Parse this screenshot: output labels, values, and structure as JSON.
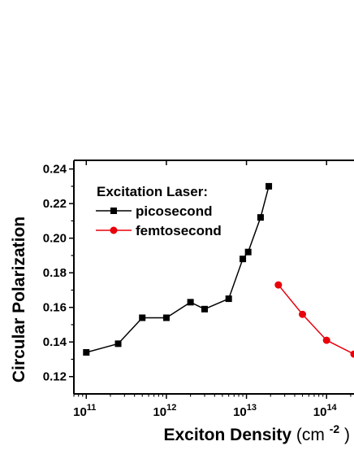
{
  "chart_data": {
    "type": "line",
    "xscale": "log",
    "xlabel": "Exciton Density (cm-2)",
    "xlabel_main": "Exciton Density ",
    "xlabel_unit_open": "(cm",
    "xlabel_unit_exp": "-2",
    "xlabel_unit_close": ")",
    "ylabel": "Circular Polarization",
    "xlim": [
      70000000000.0,
      220000000000000.0
    ],
    "ylim": [
      0.11,
      0.245
    ],
    "x_ticks": [
      {
        "base": "10",
        "exp": "11",
        "value": 100000000000.0
      },
      {
        "base": "10",
        "exp": "12",
        "value": 1000000000000.0
      },
      {
        "base": "10",
        "exp": "13",
        "value": 10000000000000.0
      },
      {
        "base": "10",
        "exp": "14",
        "value": 100000000000000.0
      }
    ],
    "y_ticks": [
      "0.12",
      "0.14",
      "0.16",
      "0.18",
      "0.20",
      "0.22",
      "0.24"
    ],
    "legend": {
      "title": "Excitation Laser:",
      "position": "top-left"
    },
    "series": [
      {
        "name": "picosecond",
        "color": "#000000",
        "marker": "square",
        "x": [
          100000000000.0,
          250000000000.0,
          500000000000.0,
          1000000000000.0,
          2000000000000.0,
          3000000000000.0,
          6000000000000.0,
          9000000000000.0,
          10500000000000.0,
          15000000000000.0,
          19000000000000.0
        ],
        "y": [
          0.134,
          0.139,
          0.154,
          0.154,
          0.163,
          0.159,
          0.165,
          0.188,
          0.192,
          0.212,
          0.23
        ]
      },
      {
        "name": "femtosecond",
        "color": "#e8000b",
        "marker": "circle",
        "x": [
          25000000000000.0,
          50000000000000.0,
          100000000000000.0,
          220000000000000.0
        ],
        "y": [
          0.173,
          0.156,
          0.141,
          0.133
        ]
      }
    ]
  }
}
